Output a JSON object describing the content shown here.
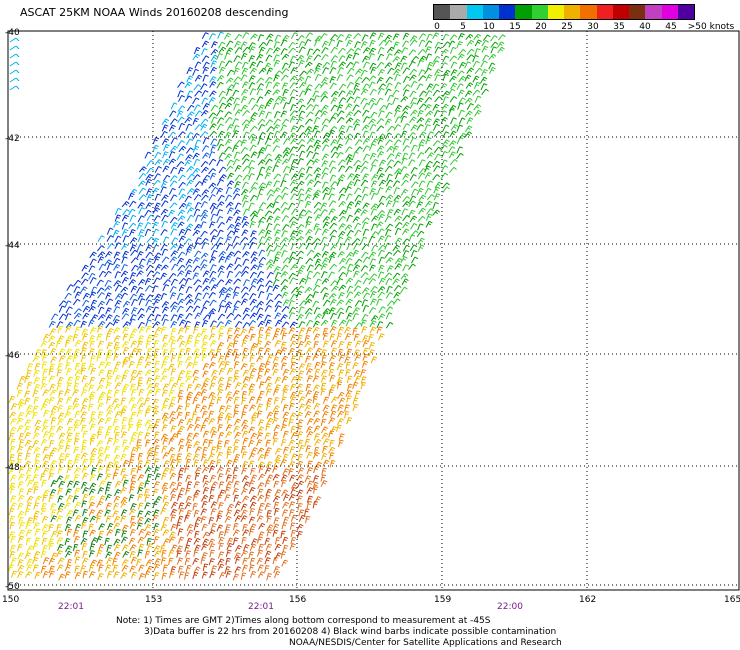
{
  "title": "ASCAT 25KM NOAA Winds 20160208 descending",
  "legend": {
    "colors": [
      "#555555",
      "#aaaaaa",
      "#00c8f0",
      "#0090e0",
      "#0030d0",
      "#00a000",
      "#30d030",
      "#f0f000",
      "#f0b000",
      "#f07000",
      "#f02020",
      "#c00000",
      "#7a3010",
      "#c040c0",
      "#e000e0",
      "#5000a0"
    ],
    "labels": [
      "0",
      "5",
      "10",
      "15",
      "20",
      "25",
      "30",
      "35",
      "40",
      "45",
      ">50 knots"
    ]
  },
  "map": {
    "lat_labels": [
      "-40",
      "-42",
      "-44",
      "-46",
      "-48",
      "-50"
    ],
    "lon_labels": [
      "150",
      "153",
      "156",
      "159",
      "162",
      "165"
    ],
    "time_labels": [
      "22:01",
      "22:01",
      "22:00"
    ]
  },
  "notes": [
    "Note: 1) Times are GMT 2)Times along bottom correspond to measurement at -45S",
    "3)Data buffer is 22 hrs from 20160208 4) Black wind barbs indicate possible contamination",
    "NOAA/NESDIS/Center for Satellite Applications and Research"
  ]
}
